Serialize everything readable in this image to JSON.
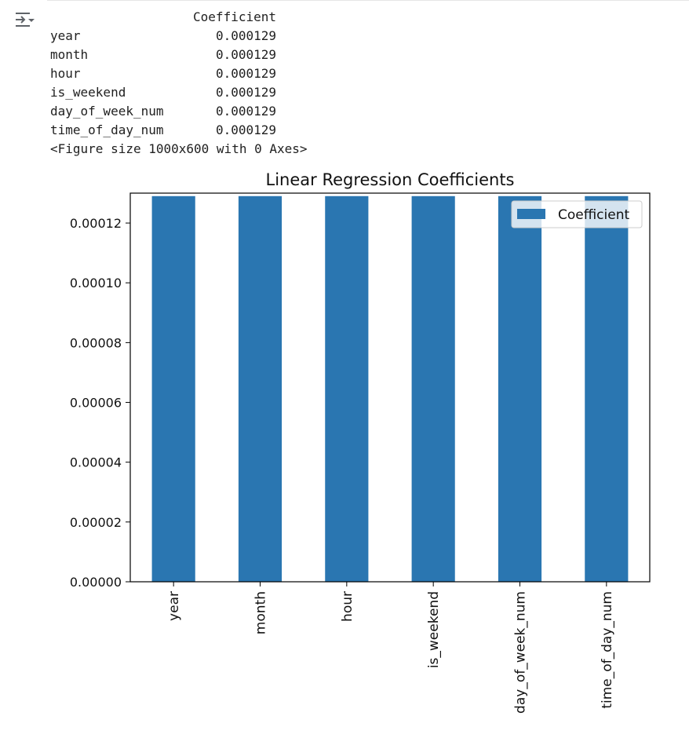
{
  "output_toggle_icon": "collapse-output-icon",
  "dataframe": {
    "column_header": "Coefficient",
    "rows": [
      {
        "index": "year",
        "value": "0.000129"
      },
      {
        "index": "month",
        "value": "0.000129"
      },
      {
        "index": "hour",
        "value": "0.000129"
      },
      {
        "index": "is_weekend",
        "value": "0.000129"
      },
      {
        "index": "day_of_week_num",
        "value": "0.000129"
      },
      {
        "index": "time_of_day_num",
        "value": "0.000129"
      }
    ]
  },
  "figure_repr": "<Figure size 1000x600 with 0 Axes>",
  "chart_data": {
    "type": "bar",
    "title": "Linear Regression Coefficients",
    "categories": [
      "year",
      "month",
      "hour",
      "is_weekend",
      "day_of_week_num",
      "time_of_day_num"
    ],
    "series": [
      {
        "name": "Coefficient",
        "values": [
          0.000129,
          0.000129,
          0.000129,
          0.000129,
          0.000129,
          0.000129
        ],
        "color": "#2a76b1"
      }
    ],
    "ylim": [
      0,
      0.00013
    ],
    "yticks": [
      "0.00000",
      "0.00002",
      "0.00004",
      "0.00006",
      "0.00008",
      "0.00010",
      "0.00012"
    ],
    "ytick_values": [
      0,
      2e-05,
      4e-05,
      6e-05,
      8e-05,
      0.0001,
      0.00012
    ],
    "xlabel": "",
    "ylabel": "",
    "grid": false,
    "legend": "top-right",
    "x_tick_rotation": 90
  }
}
